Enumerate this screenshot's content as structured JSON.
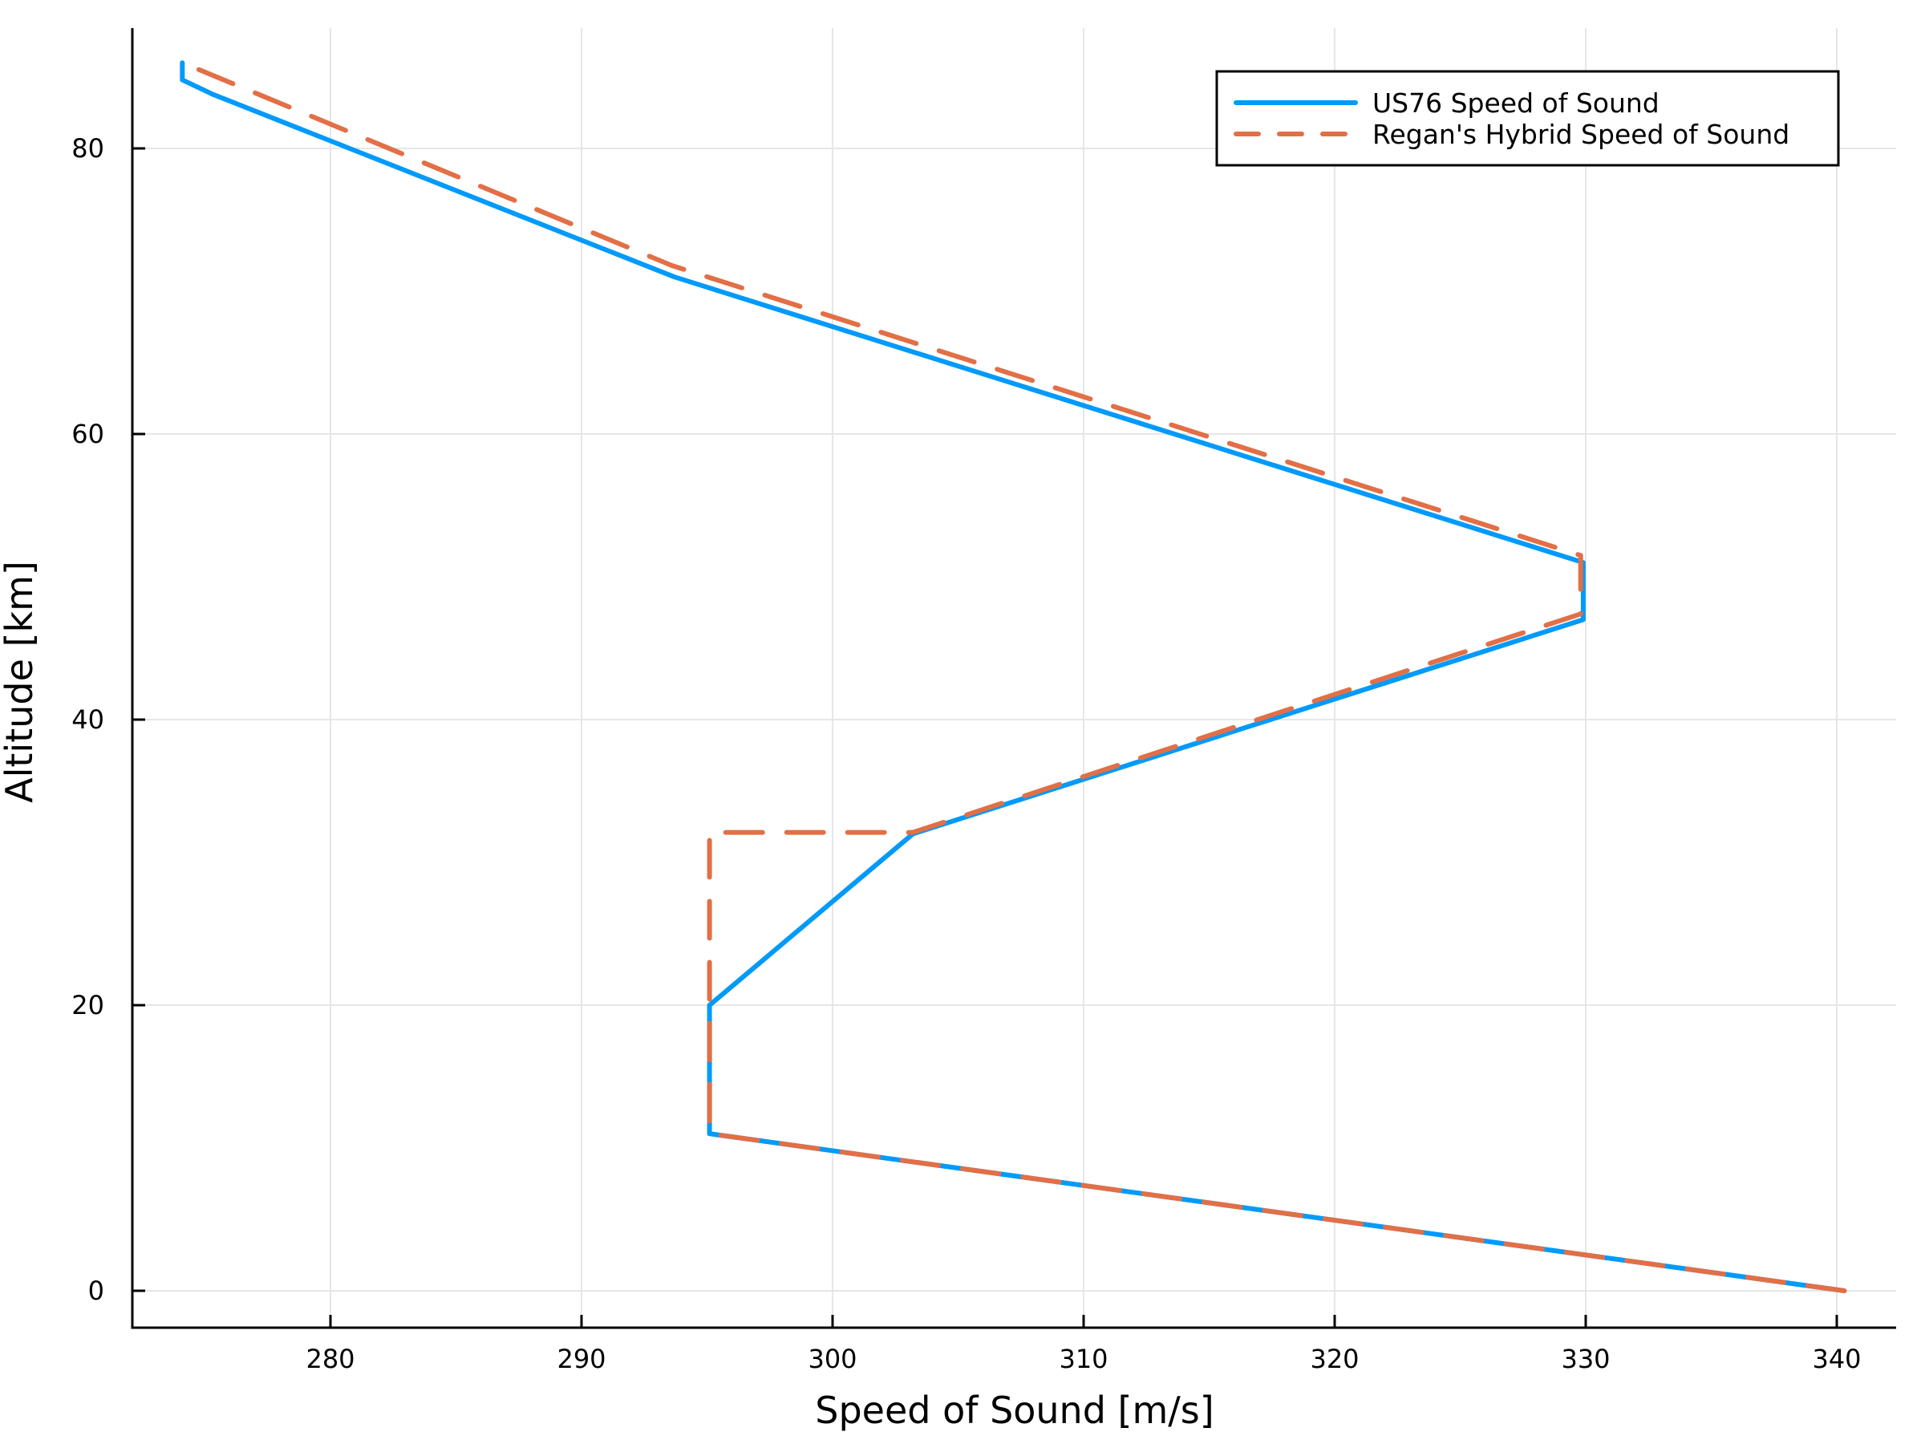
{
  "chart_data": {
    "type": "line",
    "title": "",
    "xlabel": "Speed of Sound [m/s]",
    "ylabel": "Altitude [km]",
    "xlim": [
      272,
      342.5
    ],
    "ylim": [
      -2.6,
      88.5
    ],
    "xticks": [
      280,
      290,
      300,
      310,
      320,
      330,
      340
    ],
    "yticks": [
      0,
      20,
      40,
      60,
      80
    ],
    "grid": true,
    "legend_position": "top-right",
    "series": [
      {
        "name": "US76 Speed of Sound",
        "style": "solid",
        "color": "#009AFA",
        "x": [
          340.3,
          295.1,
          295.1,
          303.2,
          329.9,
          329.9,
          293.7,
          275.3,
          274.1,
          274.1
        ],
        "y": [
          0,
          11,
          20,
          32,
          47,
          51,
          71,
          83.8,
          84.8,
          86
        ]
      },
      {
        "name": "Regan's Hybrid Speed of Sound",
        "style": "dashed",
        "color": "#E26F46",
        "x": [
          340.3,
          295.1,
          295.1,
          303.2,
          329.8,
          329.8,
          293.6,
          274.1
        ],
        "y": [
          0,
          11,
          32.1,
          32.1,
          47.4,
          51.5,
          71.8,
          86
        ]
      }
    ]
  }
}
